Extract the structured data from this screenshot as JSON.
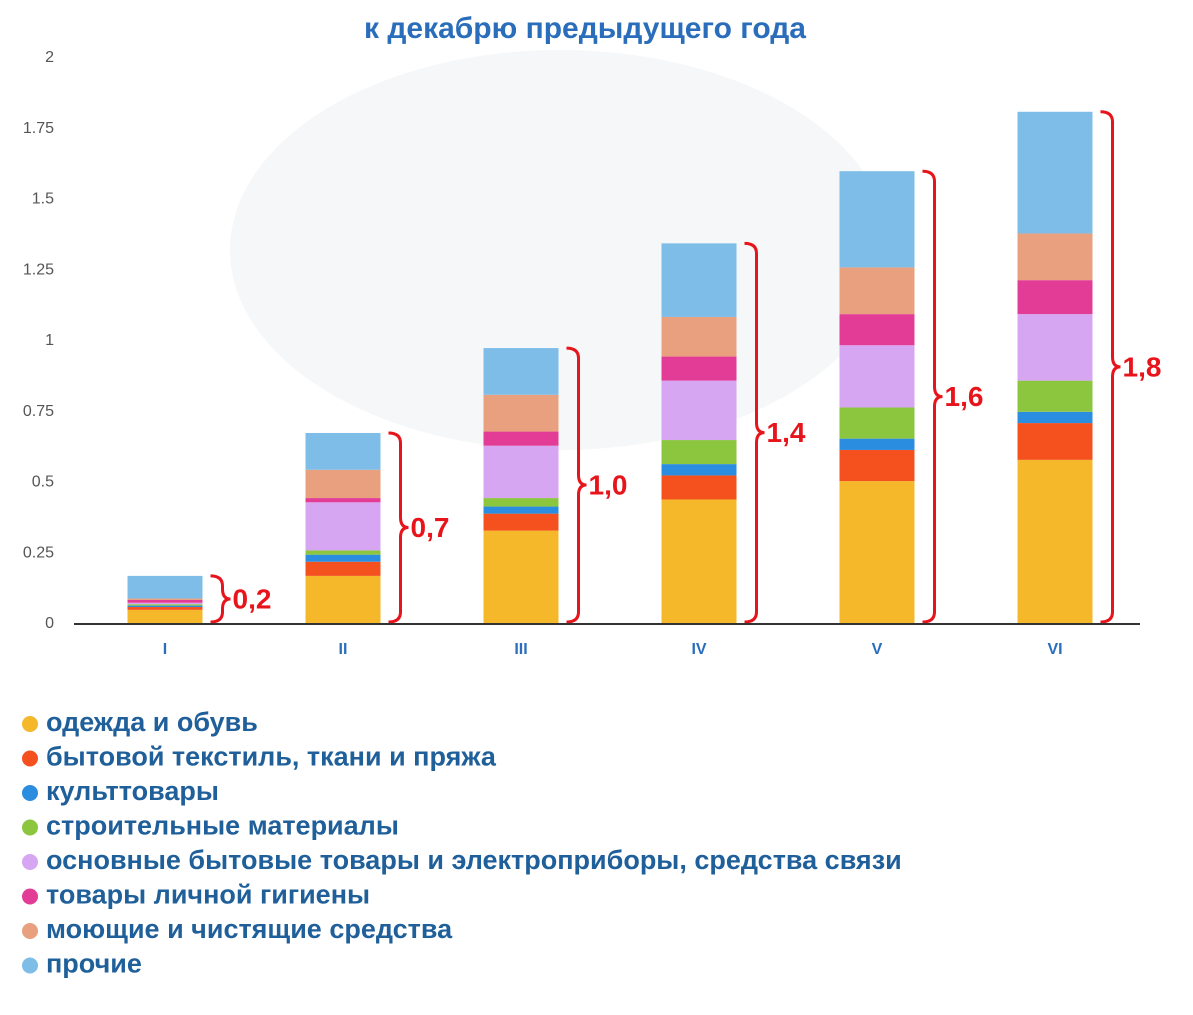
{
  "chart_data": {
    "type": "stacked_bar",
    "title": "к декабрю предыдущего года",
    "categories": [
      "I",
      "II",
      "III",
      "IV",
      "V",
      "VI"
    ],
    "series": [
      {
        "name": "одежда и обувь",
        "color": "#f5b82a",
        "values": [
          0.05,
          0.17,
          0.33,
          0.44,
          0.505,
          0.58
        ]
      },
      {
        "name": "бытовой текстиль, ткани и пряжа",
        "color": "#f4511e",
        "values": [
          0.01,
          0.05,
          0.06,
          0.085,
          0.11,
          0.13
        ]
      },
      {
        "name": "культтовары",
        "color": "#2b8de0",
        "values": [
          0.005,
          0.025,
          0.025,
          0.04,
          0.04,
          0.04
        ]
      },
      {
        "name": "строительные материалы",
        "color": "#8cc63f",
        "values": [
          0.005,
          0.015,
          0.03,
          0.085,
          0.11,
          0.11
        ]
      },
      {
        "name": "основные бытовые товары и электроприборы, средства связи",
        "color": "#d7a6f2",
        "values": [
          0.005,
          0.17,
          0.185,
          0.21,
          0.22,
          0.235
        ]
      },
      {
        "name": "товары личной гигиены",
        "color": "#e23c96",
        "values": [
          0.01,
          0.015,
          0.05,
          0.085,
          0.11,
          0.12
        ]
      },
      {
        "name": "моющие и чистящие средства",
        "color": "#e9a07e",
        "values": [
          0.005,
          0.1,
          0.13,
          0.14,
          0.165,
          0.165
        ]
      },
      {
        "name": "прочие",
        "color": "#7dbde8",
        "values": [
          0.08,
          0.13,
          0.165,
          0.26,
          0.34,
          0.43
        ]
      }
    ],
    "annotations": [
      "0,2",
      "0,7",
      "1,0",
      "1,4",
      "1,6",
      "1,8"
    ],
    "annotation_color": "#e8141b",
    "ylim": [
      0,
      2
    ],
    "yticks": [
      0,
      0.25,
      0.5,
      0.75,
      1,
      1.25,
      1.5,
      1.75,
      2
    ],
    "grid": false
  }
}
